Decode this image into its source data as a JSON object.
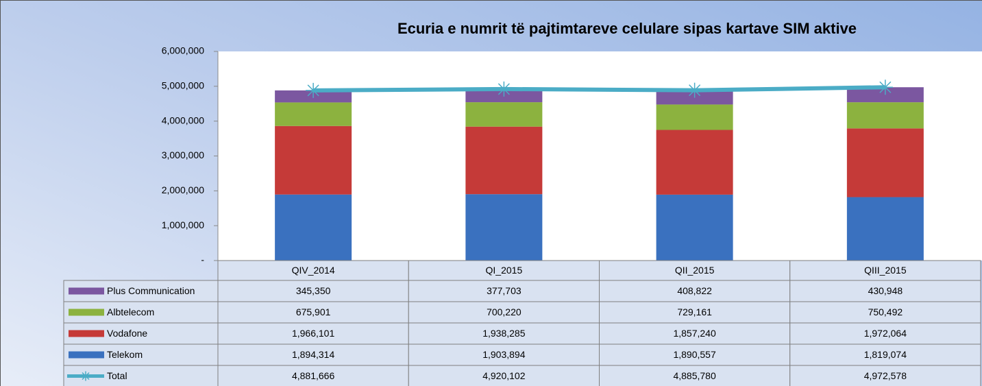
{
  "chart_data": {
    "type": "bar",
    "title": "Ecuria e numrit të pajtimtareve celulare sipas kartave SIM aktive",
    "categories": [
      "QIV_2014",
      "QI_2015",
      "QII_2015",
      "QIII_2015"
    ],
    "stacked": true,
    "series": [
      {
        "name": "Telekom",
        "color": "#3a71bf",
        "values": [
          1894314,
          1903894,
          1890557,
          1819074
        ],
        "value_labels": [
          "1,894,314",
          "1,903,894",
          "1,890,557",
          "1,819,074"
        ]
      },
      {
        "name": "Vodafone",
        "color": "#c53a38",
        "values": [
          1966101,
          1938285,
          1857240,
          1972064
        ],
        "value_labels": [
          "1,966,101",
          "1,938,285",
          "1,857,240",
          "1,972,064"
        ]
      },
      {
        "name": "Albtelecom",
        "color": "#8cb23f",
        "values": [
          675901,
          700220,
          729161,
          750492
        ],
        "value_labels": [
          "675,901",
          "700,220",
          "729,161",
          "750,492"
        ]
      },
      {
        "name": "Plus Communication",
        "color": "#7b57a0",
        "values": [
          345350,
          377703,
          408822,
          430948
        ],
        "value_labels": [
          "345,350",
          "377,703",
          "408,822",
          "430,948"
        ]
      },
      {
        "name": "Total",
        "type": "line",
        "color": "#4bacc6",
        "values": [
          4881666,
          4920102,
          4885780,
          4972578
        ],
        "value_labels": [
          "4,881,666",
          "4,920,102",
          "4,885,780",
          "4,972,578"
        ]
      }
    ],
    "ylim": [
      0,
      6000000
    ],
    "yticks": [
      {
        "value": 0,
        "label": "-"
      },
      {
        "value": 1000000,
        "label": "1,000,000"
      },
      {
        "value": 2000000,
        "label": "2,000,000"
      },
      {
        "value": 3000000,
        "label": "3,000,000"
      },
      {
        "value": 4000000,
        "label": "4,000,000"
      },
      {
        "value": 5000000,
        "label": "5,000,000"
      },
      {
        "value": 6000000,
        "label": "6,000,000"
      }
    ]
  }
}
